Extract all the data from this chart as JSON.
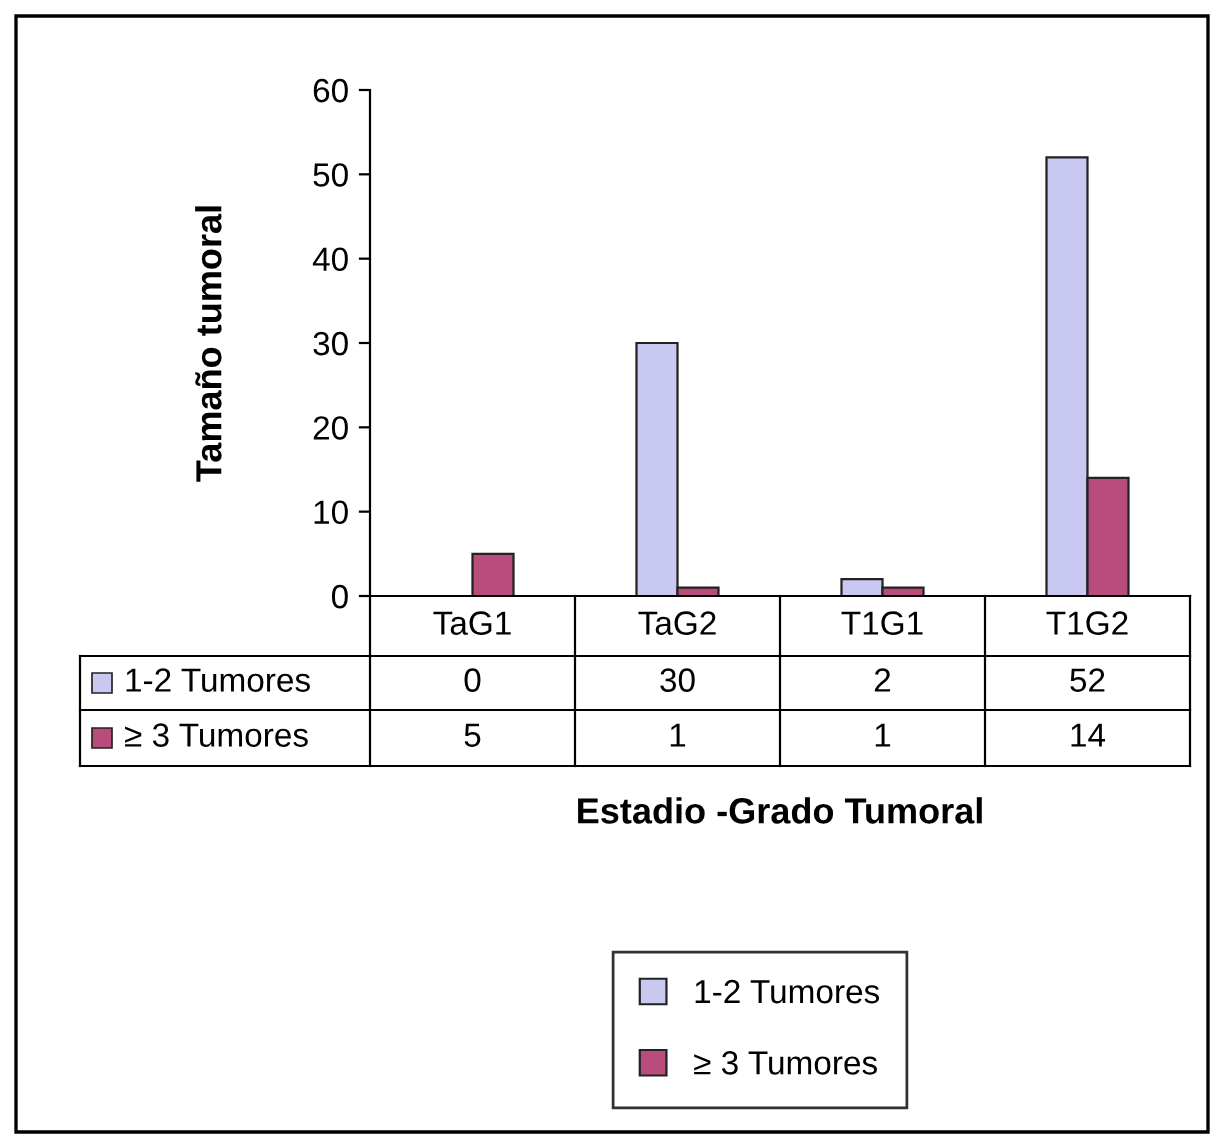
{
  "chart_data": {
    "type": "bar",
    "xlabel": "Estadio -Grado Tumoral",
    "ylabel": "Tamaño tumoral",
    "categories": [
      "TaG1",
      "TaG2",
      "T1G1",
      "T1G2"
    ],
    "series": [
      {
        "name": "1-2 Tumores",
        "color": "#c8c8f0",
        "values": [
          0,
          30,
          2,
          52
        ]
      },
      {
        "name": "≥ 3 Tumores",
        "color": "#b84c7c",
        "values": [
          5,
          1,
          1,
          14
        ]
      }
    ],
    "ylim": [
      0,
      60
    ],
    "yticks": [
      0,
      10,
      20,
      30,
      40,
      50,
      60
    ],
    "grid": false,
    "legend": "bottom",
    "data_labels": true
  }
}
